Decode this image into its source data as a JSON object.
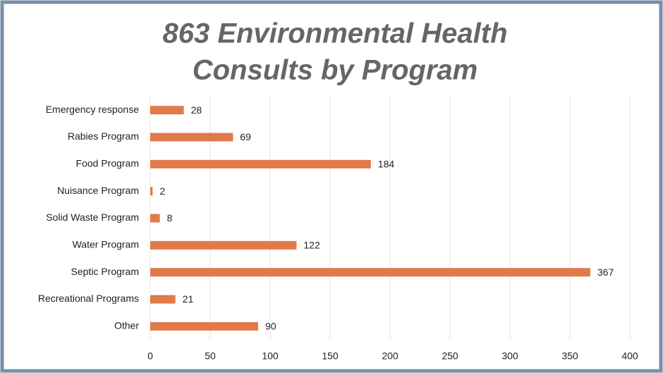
{
  "chart_data": {
    "type": "bar",
    "orientation": "horizontal",
    "title": [
      "863 Environmental Health",
      "Consults by Program"
    ],
    "categories": [
      "Emergency response",
      "Rabies Program",
      "Food Program",
      "Nuisance Program",
      "Solid Waste Program",
      "Water Program",
      "Septic Program",
      "Recreational Programs",
      "Other"
    ],
    "values": [
      28,
      69,
      184,
      2,
      8,
      122,
      367,
      21,
      90
    ],
    "color": "#e07a48",
    "xlim": [
      0,
      400
    ],
    "xticks": [
      0,
      50,
      100,
      150,
      200,
      250,
      300,
      350,
      400
    ],
    "grid": true
  }
}
